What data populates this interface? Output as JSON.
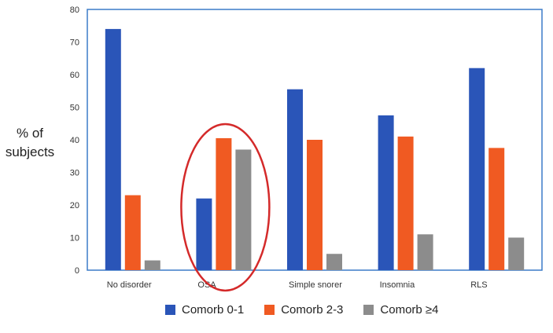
{
  "chart_data": {
    "type": "bar",
    "ylabel": "% of\nsubjects",
    "ylim": [
      0,
      80
    ],
    "yticks": [
      0,
      10,
      20,
      30,
      40,
      50,
      60,
      70,
      80
    ],
    "grid": false,
    "legend_position": "bottom",
    "categories": [
      "No disorder",
      "OSA",
      "Simple snorer",
      "Insomnia",
      "RLS"
    ],
    "series": [
      {
        "name": "Comorb 0-1",
        "color": "#2a55b8",
        "values": [
          74,
          22,
          55.5,
          47.5,
          62
        ]
      },
      {
        "name": "Comorb 2-3",
        "color": "#f05a22",
        "values": [
          23,
          40.5,
          40,
          41,
          37.5
        ]
      },
      {
        "name": "Comorb ≥4",
        "color": "#8c8c8c",
        "values": [
          3,
          37,
          5,
          11,
          10
        ]
      }
    ],
    "annotation": {
      "type": "ellipse",
      "color": "#d42a2a",
      "category": "OSA"
    }
  }
}
